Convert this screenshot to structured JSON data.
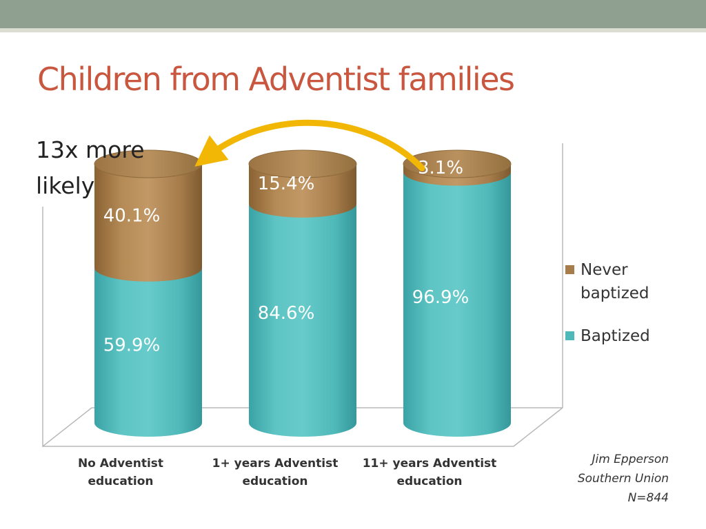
{
  "slide": {
    "title": "Children from Adventist families",
    "callout": "13x more likely",
    "source_lines": [
      "Jim Epperson",
      "Southern Union",
      "N=844"
    ]
  },
  "chart_data": {
    "type": "bar",
    "stacked": true,
    "three_d": true,
    "title": "",
    "categories": [
      "No Adventist education",
      "1+ years Adventist education",
      "11+ years Adventist education"
    ],
    "series": [
      {
        "name": "Baptized",
        "color": "#4fb8b8",
        "values": [
          59.9,
          84.6,
          96.9
        ],
        "labels": [
          "59.9%",
          "84.6%",
          "96.9%"
        ]
      },
      {
        "name": "Never baptized",
        "color": "#a67c4a",
        "values": [
          40.1,
          15.4,
          3.1
        ],
        "labels": [
          "40.1%",
          "15.4%",
          "3.1%"
        ]
      }
    ],
    "ylim": [
      0,
      100
    ],
    "legend_position": "right",
    "annotation_arrow": {
      "from": "11+ years Adventist education",
      "to": "No Adventist education",
      "color": "#f2b705"
    }
  }
}
